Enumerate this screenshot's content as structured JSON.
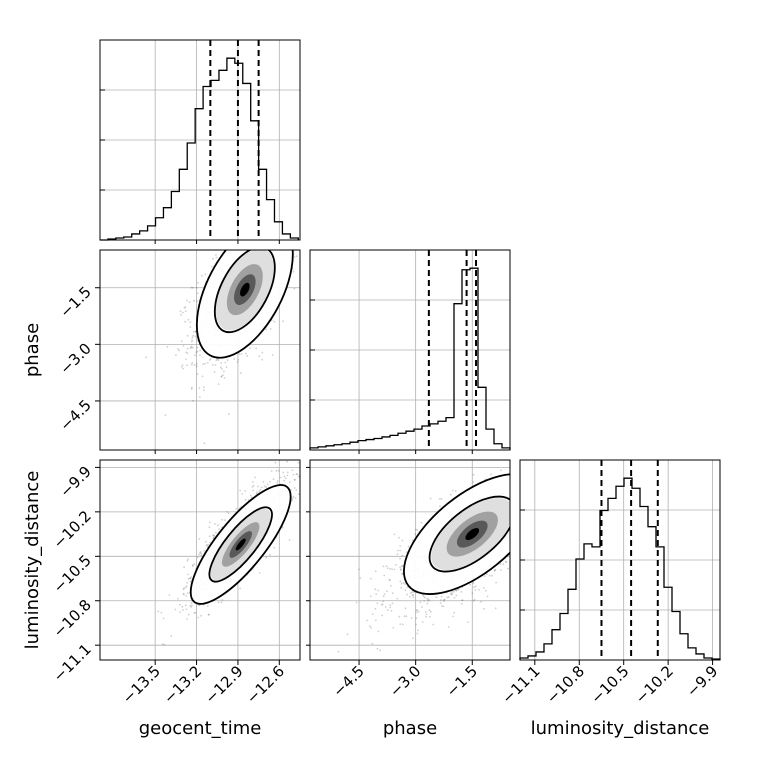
{
  "chart_data": {
    "type": "corner",
    "parameters": [
      "geocent_time",
      "phase",
      "luminosity_distance"
    ],
    "axes": {
      "geocent_time": {
        "range": [
          -13.9,
          -12.45
        ],
        "ticks": [
          -13.5,
          -13.2,
          -12.9,
          -12.6
        ],
        "tick_labels": [
          "−13.5",
          "−13.2",
          "−12.9",
          "−12.6"
        ],
        "label": "geocent_time"
      },
      "phase": {
        "range": [
          -5.8,
          -0.5
        ],
        "ticks": [
          -4.5,
          -3.0,
          -1.5
        ],
        "tick_labels": [
          "−4.5",
          "−3.0",
          "−1.5"
        ],
        "label": "phase"
      },
      "luminosity_distance": {
        "range": [
          -11.2,
          -9.85
        ],
        "ticks": [
          -11.1,
          -10.8,
          -10.5,
          -10.2,
          -9.9
        ],
        "tick_labels": [
          "−11.1",
          "−10.8",
          "−10.5",
          "−10.2",
          "−9.9"
        ],
        "label": "luminosity_distance"
      }
    },
    "histograms": [
      {
        "parameter": "geocent_time",
        "bin_edges": [
          -13.9,
          -13.8425,
          -13.785,
          -13.7275,
          -13.67,
          -13.6125,
          -13.555,
          -13.4975,
          -13.44,
          -13.3825,
          -13.325,
          -13.2675,
          -13.21,
          -13.1525,
          -13.095,
          -13.0375,
          -12.98,
          -12.9225,
          -12.865,
          -12.8075,
          -12.75,
          -12.6925,
          -12.635,
          -12.5775,
          -12.52,
          -12.4625
        ],
        "counts": [
          0,
          1,
          2,
          3,
          6,
          9,
          14,
          22,
          32,
          48,
          70,
          96,
          130,
          152,
          158,
          168,
          180,
          175,
          155,
          118,
          70,
          40,
          18,
          6,
          2
        ],
        "quantiles": [
          -13.1,
          -12.9,
          -12.75
        ]
      },
      {
        "parameter": "phase",
        "bin_edges": [
          -5.8,
          -5.588,
          -5.376,
          -5.164,
          -4.952,
          -4.74,
          -4.528,
          -4.316,
          -4.104,
          -3.892,
          -3.68,
          -3.468,
          -3.256,
          -3.044,
          -2.832,
          -2.62,
          -2.408,
          -2.196,
          -1.984,
          -1.772,
          -1.56,
          -1.348,
          -1.136,
          -0.924,
          -0.712,
          -0.5
        ],
        "counts": [
          4,
          6,
          8,
          10,
          12,
          15,
          18,
          20,
          22,
          25,
          28,
          32,
          36,
          40,
          46,
          50,
          55,
          62,
          280,
          345,
          348,
          120,
          40,
          12,
          4
        ],
        "quantiles": [
          -2.65,
          -1.65,
          -1.4
        ]
      },
      {
        "parameter": "luminosity_distance",
        "bin_edges": [
          -11.2,
          -11.146,
          -11.092,
          -11.038,
          -10.984,
          -10.93,
          -10.876,
          -10.822,
          -10.768,
          -10.714,
          -10.66,
          -10.606,
          -10.552,
          -10.498,
          -10.444,
          -10.39,
          -10.336,
          -10.282,
          -10.228,
          -10.174,
          -10.12,
          -10.066,
          -10.012,
          -9.958,
          -9.904,
          -9.85
        ],
        "counts": [
          2,
          4,
          8,
          16,
          30,
          46,
          70,
          100,
          115,
          112,
          148,
          160,
          172,
          180,
          170,
          152,
          132,
          112,
          72,
          48,
          26,
          12,
          6,
          2,
          1
        ],
        "quantiles": [
          -10.65,
          -10.45,
          -10.27
        ]
      }
    ],
    "scatter_2d": [
      {
        "x": "geocent_time",
        "y": "phase",
        "mean": [
          -12.88,
          -1.7
        ],
        "sigma": [
          0.17,
          0.9
        ],
        "rho": 0.55,
        "density_peak": [
          -12.85,
          -1.55
        ],
        "contour_levels": 2
      },
      {
        "x": "geocent_time",
        "y": "luminosity_distance",
        "mean": [
          -12.9,
          -10.4
        ],
        "sigma": [
          0.18,
          0.2
        ],
        "rho": 0.82,
        "density_peak": [
          -12.88,
          -10.42
        ],
        "contour_levels": 2
      },
      {
        "x": "phase",
        "y": "luminosity_distance",
        "mean": [
          -1.8,
          -10.45
        ],
        "sigma": [
          0.9,
          0.2
        ],
        "rho": 0.65,
        "density_peak": [
          -1.5,
          -10.35
        ],
        "contour_levels": 2
      }
    ],
    "grid": true,
    "colors": {
      "hist": "#000000",
      "points": "#555555",
      "contours": "#000000",
      "density_max": "#000000"
    }
  }
}
